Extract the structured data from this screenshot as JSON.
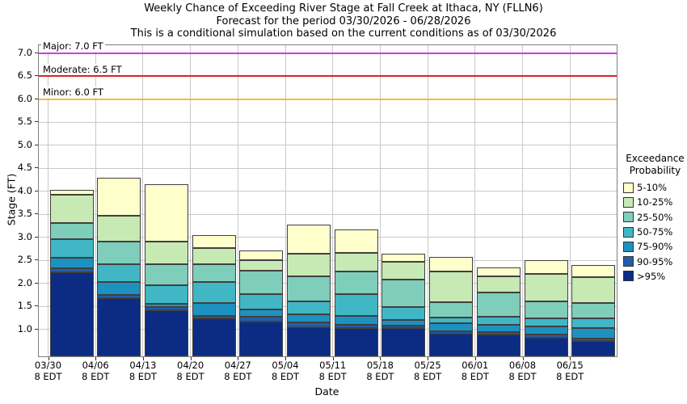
{
  "title": {
    "line1": "Weekly Chance of Exceeding River Stage at Fall Creek at Ithaca, NY (FLLN6)",
    "line2": "Forecast for the period 03/30/2026 - 06/28/2026",
    "line3": "This is a conditional simulation based on the current conditions as of 03/30/2026"
  },
  "chart_data": {
    "type": "bar",
    "stacked": true,
    "title": "Weekly Chance of Exceeding River Stage at Fall Creek at Ithaca, NY (FLLN6)",
    "xlabel": "Date",
    "ylabel": "Stage (FT)",
    "ylim": [
      0.42,
      7.17
    ],
    "yticks": [
      1.0,
      1.5,
      2.0,
      2.5,
      3.0,
      3.5,
      4.0,
      4.5,
      5.0,
      5.5,
      6.0,
      6.5,
      7.0
    ],
    "grid": true,
    "categories": [
      "03/30",
      "04/06",
      "04/13",
      "04/20",
      "04/27",
      "05/04",
      "05/11",
      "05/18",
      "05/25",
      "06/01",
      "06/08",
      "06/15"
    ],
    "x_tick_subline": "8 EDT",
    "base_value": 0.42,
    "series": [
      {
        "name": ">95%",
        "color": "#0c2c84",
        "tops": [
          2.25,
          1.68,
          1.42,
          1.24,
          1.18,
          1.05,
          1.03,
          1.03,
          0.91,
          0.89,
          0.83,
          0.75
        ]
      },
      {
        "name": "90-95%",
        "color": "#225ea8",
        "tops": [
          2.33,
          1.75,
          1.49,
          1.3,
          1.28,
          1.15,
          1.11,
          1.09,
          0.97,
          0.95,
          0.89,
          0.81
        ]
      },
      {
        "name": "75-90%",
        "color": "#1d91c0",
        "tops": [
          2.56,
          2.04,
          1.56,
          1.57,
          1.43,
          1.34,
          1.3,
          1.21,
          1.14,
          1.11,
          1.06,
          1.03
        ]
      },
      {
        "name": "50-75%",
        "color": "#41b6c4",
        "tops": [
          2.96,
          2.41,
          1.97,
          2.04,
          1.77,
          1.61,
          1.77,
          1.49,
          1.27,
          1.28,
          1.25,
          1.24
        ]
      },
      {
        "name": "25-50%",
        "color": "#7fcdbb",
        "tops": [
          3.32,
          2.91,
          2.41,
          2.42,
          2.28,
          2.15,
          2.26,
          2.09,
          1.59,
          1.81,
          1.61,
          1.58
        ]
      },
      {
        "name": "10-25%",
        "color": "#c7e9b4",
        "tops": [
          3.93,
          3.47,
          2.91,
          2.77,
          2.5,
          2.64,
          2.67,
          2.47,
          2.26,
          2.16,
          2.21,
          2.13
        ]
      },
      {
        "name": "5-10%",
        "color": "#ffffcc",
        "tops": [
          4.03,
          4.3,
          4.15,
          3.05,
          2.72,
          3.28,
          3.18,
          2.65,
          2.58,
          2.35,
          2.5,
          2.4
        ]
      }
    ],
    "thresholds": [
      {
        "label": "Major: 7.0 FT",
        "value": 7.0,
        "color": "#cf3ce0"
      },
      {
        "label": "Moderate: 6.5 FT",
        "value": 6.5,
        "color": "#dd2222"
      },
      {
        "label": "Minor: 6.0 FT",
        "value": 6.0,
        "color": "#f2be35"
      }
    ],
    "legend": {
      "title_line1": "Exceedance",
      "title_line2": "Probability",
      "position": "right"
    },
    "colors": {
      "gridline": "#c9c9c9",
      "plot_border": "#7f7f7f",
      "segment_border": "#404040",
      "background": "#ffffff"
    }
  }
}
